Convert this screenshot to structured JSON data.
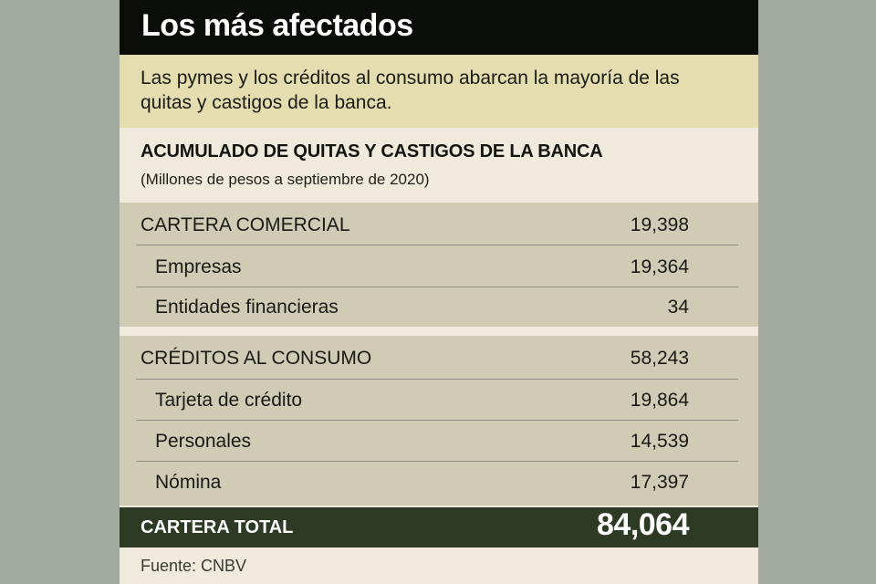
{
  "header": {
    "title": "Los más afectados",
    "subtitle": "Las pymes y los créditos al consumo abarcan la mayoría de las quitas y castigos de la banca."
  },
  "table": {
    "title": "ACUMULADO DE QUITAS Y CASTIGOS DE LA BANCA",
    "unit": "(Millones de pesos a septiembre de 2020)",
    "sections": [
      {
        "label": "CARTERA COMERCIAL",
        "value": "19,398",
        "items": [
          {
            "label": "Empresas",
            "value": "19,364"
          },
          {
            "label": "Entidades financieras",
            "value": "34"
          }
        ]
      },
      {
        "label": "CRÉDITOS AL CONSUMO",
        "value": "58,243",
        "items": [
          {
            "label": "Tarjeta de crédito",
            "value": "19,864"
          },
          {
            "label": "Personales",
            "value": "14,539"
          },
          {
            "label": "Nómina",
            "value": "17,397"
          }
        ]
      }
    ],
    "total": {
      "label": "CARTERA TOTAL",
      "value": "84,064"
    }
  },
  "source": "Fuente: CNBV",
  "colors": {
    "title_bar": "#0a0d09",
    "subtitle_bg": "#e3ddb0",
    "section_bg": "#cfcbb5",
    "total_bar": "#2e3b24",
    "page_bg": "#a2a99f"
  }
}
